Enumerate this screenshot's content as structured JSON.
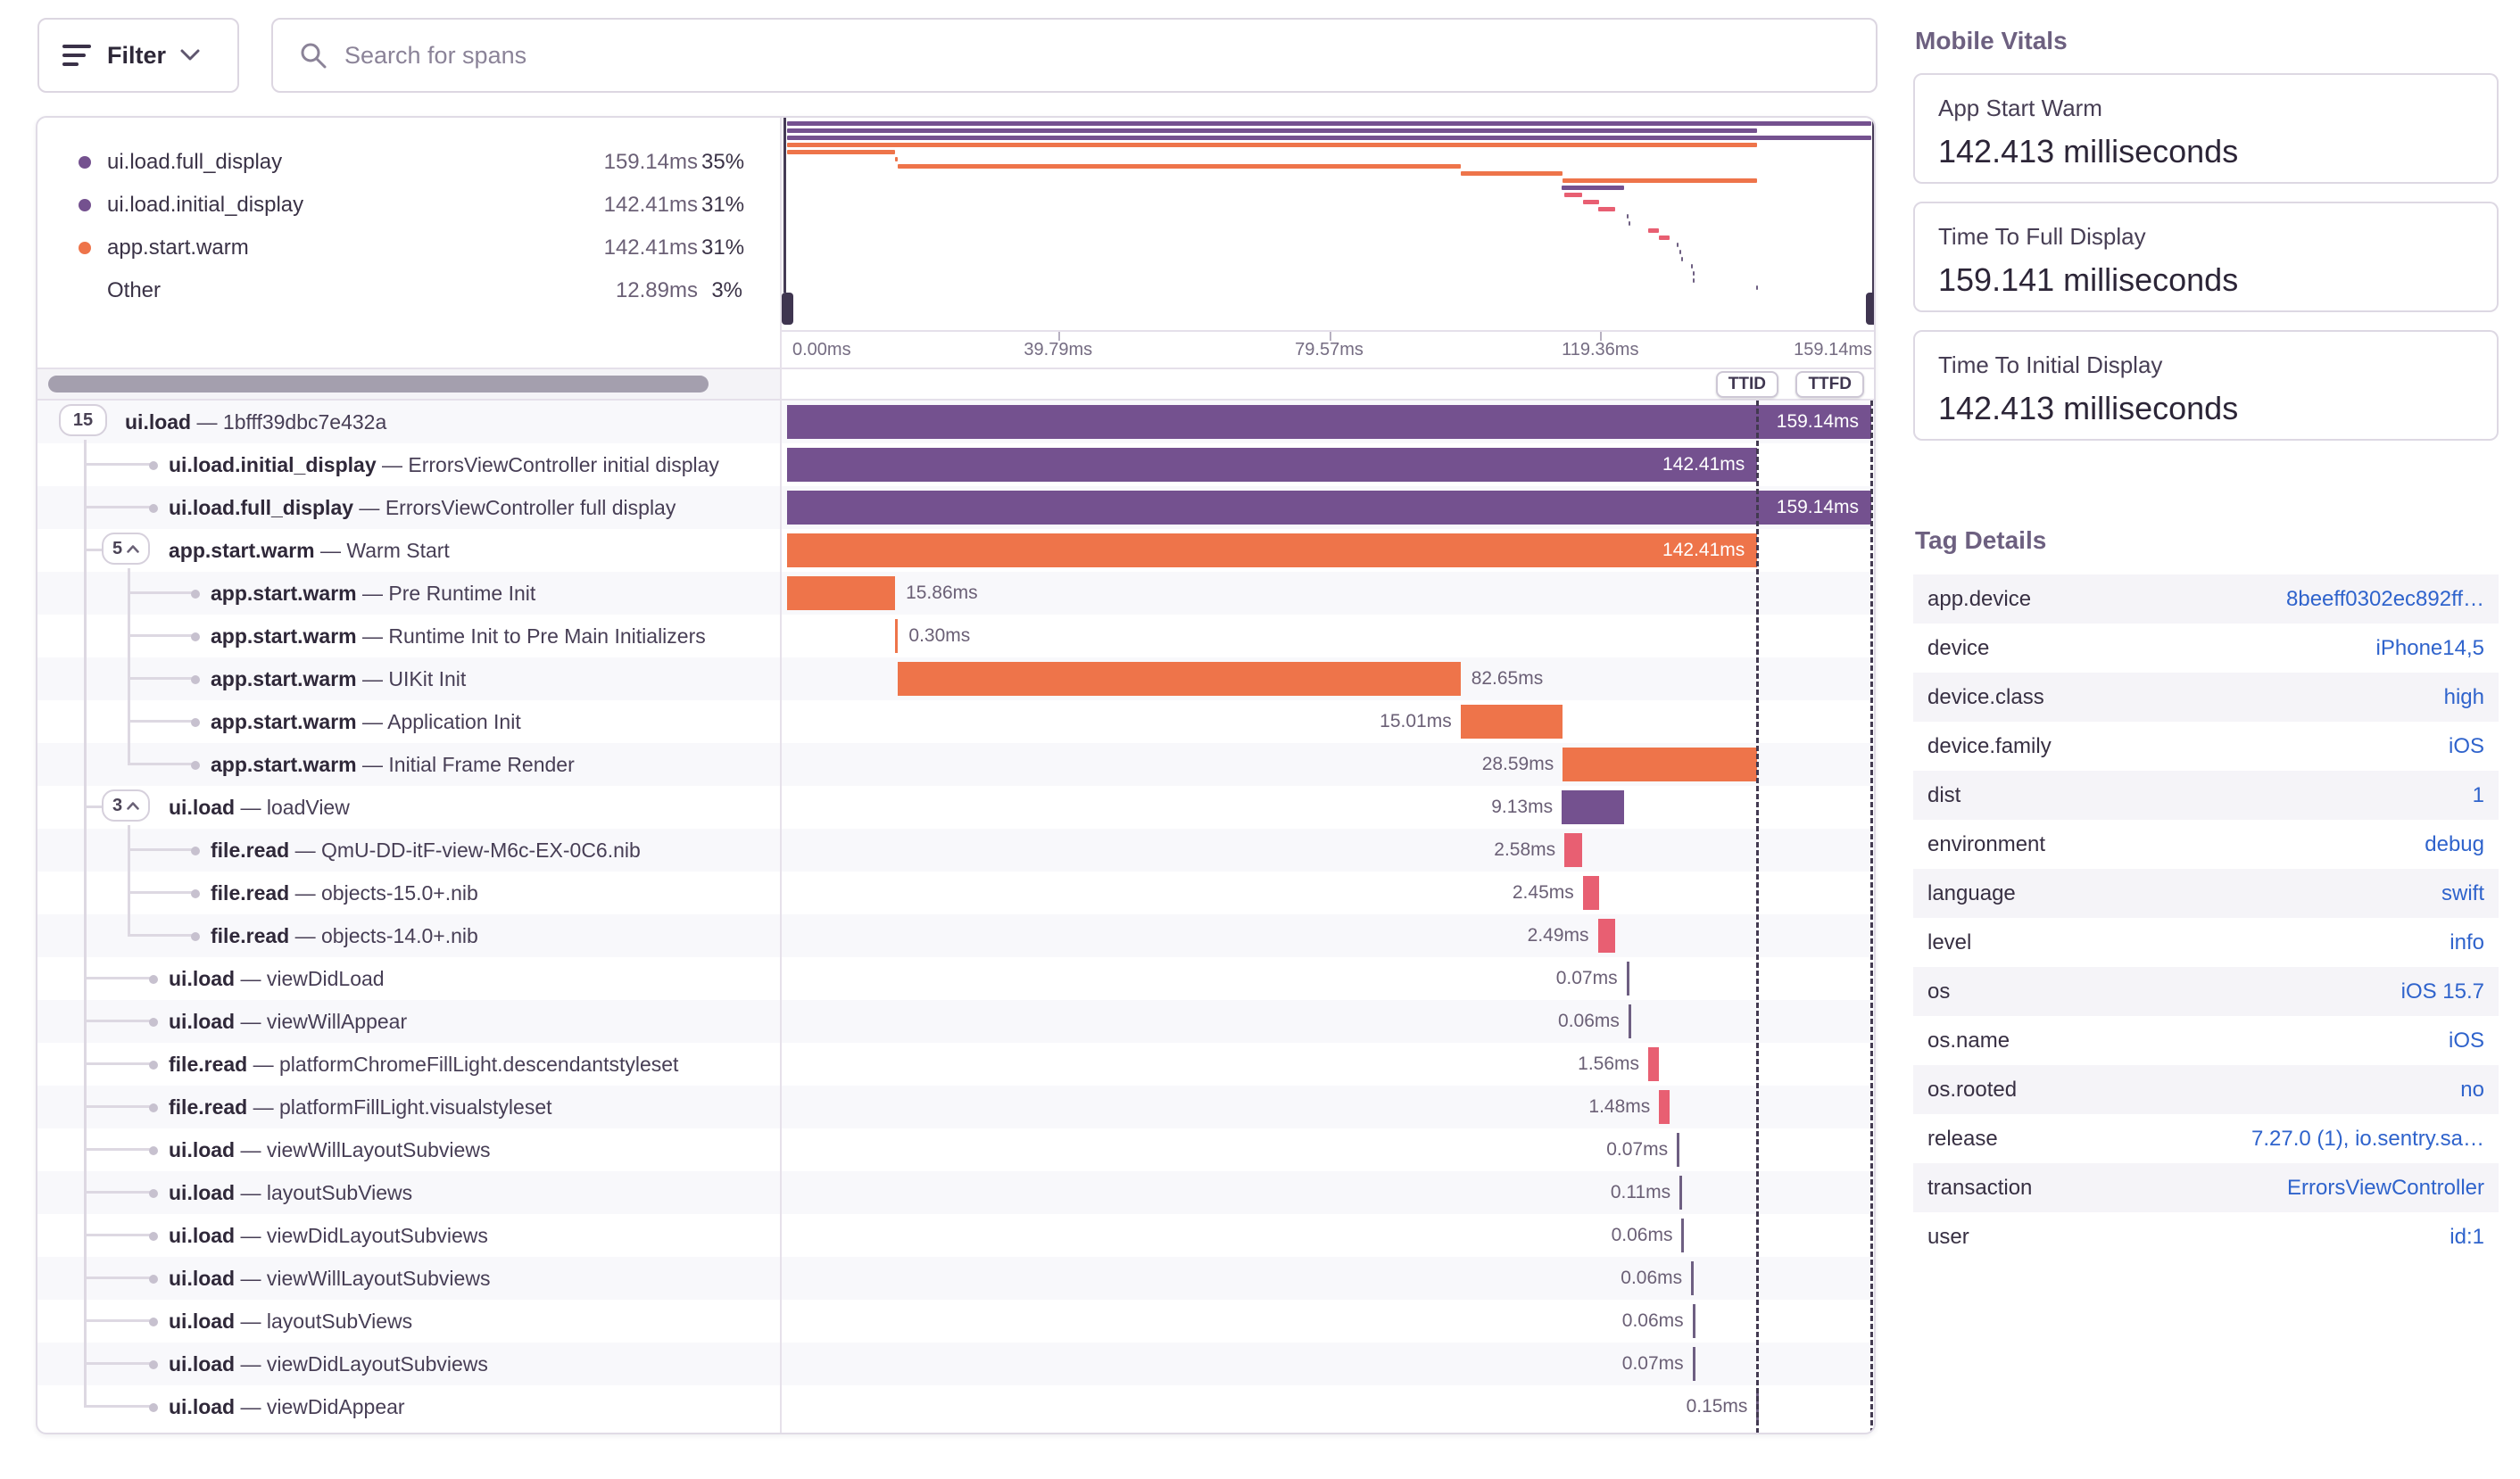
{
  "toolbar": {
    "filter_label": "Filter",
    "search_placeholder": "Search for spans"
  },
  "legend": {
    "items": [
      {
        "name": "ui.load.full_display",
        "value": "159.14ms",
        "pct": "35%",
        "color": "#74518f"
      },
      {
        "name": "ui.load.initial_display",
        "value": "142.41ms",
        "pct": "31%",
        "color": "#74518f"
      },
      {
        "name": "app.start.warm",
        "value": "142.41ms",
        "pct": "31%",
        "color": "#ee744a"
      },
      {
        "name": "Other",
        "value": "12.89ms",
        "pct": "3%",
        "color": ""
      }
    ]
  },
  "axis": {
    "ticks": [
      {
        "label": "0.00ms",
        "ms": 0
      },
      {
        "label": "39.79ms",
        "ms": 39.79
      },
      {
        "label": "79.57ms",
        "ms": 79.57
      },
      {
        "label": "119.36ms",
        "ms": 119.36
      },
      {
        "label": "159.14ms",
        "ms": 159.14
      }
    ]
  },
  "markers": {
    "ttid": {
      "label": "TTID",
      "ms": 142.41
    },
    "ttfd": {
      "label": "TTFD",
      "ms": 159.14
    }
  },
  "trace": {
    "total_ms": 159.14,
    "rows": [
      {
        "op": "ui.load",
        "desc": "1bfff39dbc7e432a",
        "depth": 0,
        "pill": "15",
        "chevron": false,
        "dur": "159.14ms",
        "start": 0,
        "ms": 159.14,
        "color": "purple",
        "label_pos": "inside"
      },
      {
        "op": "ui.load.initial_display",
        "desc": "ErrorsViewController initial display",
        "depth": 1,
        "pill": null,
        "dur": "142.41ms",
        "start": 0,
        "ms": 142.41,
        "color": "purple",
        "label_pos": "inside"
      },
      {
        "op": "ui.load.full_display",
        "desc": "ErrorsViewController full display",
        "depth": 1,
        "pill": null,
        "dur": "159.14ms",
        "start": 0,
        "ms": 159.14,
        "color": "purple",
        "label_pos": "inside"
      },
      {
        "op": "app.start.warm",
        "desc": "Warm Start",
        "depth": 1,
        "pill": "5",
        "chevron": true,
        "dur": "142.41ms",
        "start": 0,
        "ms": 142.41,
        "color": "orange",
        "label_pos": "inside"
      },
      {
        "op": "app.start.warm",
        "desc": "Pre Runtime Init",
        "depth": 2,
        "pill": null,
        "dur": "15.86ms",
        "start": 0,
        "ms": 15.86,
        "color": "orange",
        "label_pos": "right"
      },
      {
        "op": "app.start.warm",
        "desc": "Runtime Init to Pre Main Initializers",
        "depth": 2,
        "pill": null,
        "dur": "0.30ms",
        "start": 15.9,
        "ms": 0.3,
        "color": "orange",
        "label_pos": "right"
      },
      {
        "op": "app.start.warm",
        "desc": "UIKit Init",
        "depth": 2,
        "pill": null,
        "dur": "82.65ms",
        "start": 16.2,
        "ms": 82.65,
        "color": "orange",
        "label_pos": "right"
      },
      {
        "op": "app.start.warm",
        "desc": "Application Init",
        "depth": 2,
        "pill": null,
        "dur": "15.01ms",
        "start": 98.85,
        "ms": 15.01,
        "color": "orange",
        "label_pos": "left"
      },
      {
        "op": "app.start.warm",
        "desc": "Initial Frame Render",
        "depth": 2,
        "pill": null,
        "dur": "28.59ms",
        "start": 113.85,
        "ms": 28.59,
        "color": "orange",
        "label_pos": "left"
      },
      {
        "op": "ui.load",
        "desc": "loadView",
        "depth": 1,
        "pill": "3",
        "chevron": true,
        "dur": "9.13ms",
        "start": 113.7,
        "ms": 9.13,
        "color": "purple",
        "label_pos": "left"
      },
      {
        "op": "file.read",
        "desc": "QmU-DD-itF-view-M6c-EX-0C6.nib",
        "depth": 2,
        "pill": null,
        "dur": "2.58ms",
        "start": 114.1,
        "ms": 2.58,
        "color": "pink",
        "label_pos": "left"
      },
      {
        "op": "file.read",
        "desc": "objects-15.0+.nib",
        "depth": 2,
        "pill": null,
        "dur": "2.45ms",
        "start": 116.8,
        "ms": 2.45,
        "color": "pink",
        "label_pos": "left"
      },
      {
        "op": "file.read",
        "desc": "objects-14.0+.nib",
        "depth": 2,
        "pill": null,
        "dur": "2.49ms",
        "start": 119.0,
        "ms": 2.49,
        "color": "pink",
        "label_pos": "left"
      },
      {
        "op": "ui.load",
        "desc": "viewDidLoad",
        "depth": 1,
        "pill": null,
        "dur": "0.07ms",
        "start": 123.2,
        "ms": 0.07,
        "color": "tick",
        "label_pos": "left"
      },
      {
        "op": "ui.load",
        "desc": "viewWillAppear",
        "depth": 1,
        "pill": null,
        "dur": "0.06ms",
        "start": 123.5,
        "ms": 0.06,
        "color": "tick",
        "label_pos": "left"
      },
      {
        "op": "file.read",
        "desc": "platformChromeFillLight.descendantstyleset",
        "depth": 1,
        "pill": null,
        "dur": "1.56ms",
        "start": 126.4,
        "ms": 1.56,
        "color": "pink",
        "label_pos": "left"
      },
      {
        "op": "file.read",
        "desc": "platformFillLight.visualstyleset",
        "depth": 1,
        "pill": null,
        "dur": "1.48ms",
        "start": 128.0,
        "ms": 1.48,
        "color": "pink",
        "label_pos": "left"
      },
      {
        "op": "ui.load",
        "desc": "viewWillLayoutSubviews",
        "depth": 1,
        "pill": null,
        "dur": "0.07ms",
        "start": 130.6,
        "ms": 0.07,
        "color": "tick",
        "label_pos": "left"
      },
      {
        "op": "ui.load",
        "desc": "layoutSubViews",
        "depth": 1,
        "pill": null,
        "dur": "0.11ms",
        "start": 131.0,
        "ms": 0.11,
        "color": "tick",
        "label_pos": "left"
      },
      {
        "op": "ui.load",
        "desc": "viewDidLayoutSubviews",
        "depth": 1,
        "pill": null,
        "dur": "0.06ms",
        "start": 131.3,
        "ms": 0.06,
        "color": "tick",
        "label_pos": "left"
      },
      {
        "op": "ui.load",
        "desc": "viewWillLayoutSubviews",
        "depth": 1,
        "pill": null,
        "dur": "0.06ms",
        "start": 132.7,
        "ms": 0.06,
        "color": "tick",
        "label_pos": "left"
      },
      {
        "op": "ui.load",
        "desc": "layoutSubViews",
        "depth": 1,
        "pill": null,
        "dur": "0.06ms",
        "start": 132.9,
        "ms": 0.06,
        "color": "tick",
        "label_pos": "left"
      },
      {
        "op": "ui.load",
        "desc": "viewDidLayoutSubviews",
        "depth": 1,
        "pill": null,
        "dur": "0.07ms",
        "start": 132.9,
        "ms": 0.07,
        "color": "tick",
        "label_pos": "left"
      },
      {
        "op": "ui.load",
        "desc": "viewDidAppear",
        "depth": 1,
        "pill": null,
        "dur": "0.15ms",
        "start": 142.3,
        "ms": 0.15,
        "color": "tick",
        "label_pos": "left"
      }
    ]
  },
  "vitals": {
    "title": "Mobile Vitals",
    "cards": [
      {
        "label": "App Start Warm",
        "value": "142.413 milliseconds"
      },
      {
        "label": "Time To Full Display",
        "value": "159.141 milliseconds"
      },
      {
        "label": "Time To Initial Display",
        "value": "142.413 milliseconds"
      }
    ]
  },
  "tags": {
    "title": "Tag Details",
    "rows": [
      {
        "key": "app.device",
        "value": "8beeff0302ec892ff…"
      },
      {
        "key": "device",
        "value": "iPhone14,5"
      },
      {
        "key": "device.class",
        "value": "high"
      },
      {
        "key": "device.family",
        "value": "iOS"
      },
      {
        "key": "dist",
        "value": "1"
      },
      {
        "key": "environment",
        "value": "debug"
      },
      {
        "key": "language",
        "value": "swift"
      },
      {
        "key": "level",
        "value": "info"
      },
      {
        "key": "os",
        "value": "iOS 15.7"
      },
      {
        "key": "os.name",
        "value": "iOS"
      },
      {
        "key": "os.rooted",
        "value": "no"
      },
      {
        "key": "release",
        "value": "7.27.0 (1), io.sentry.sa…"
      },
      {
        "key": "transaction",
        "value": "ErrorsViewController"
      },
      {
        "key": "user",
        "value": "id:1"
      }
    ]
  },
  "colors": {
    "purple": "#74518f",
    "orange": "#ee744a",
    "pink": "#e85f72",
    "tick": "#6e5f82",
    "link": "#2f63cc"
  }
}
